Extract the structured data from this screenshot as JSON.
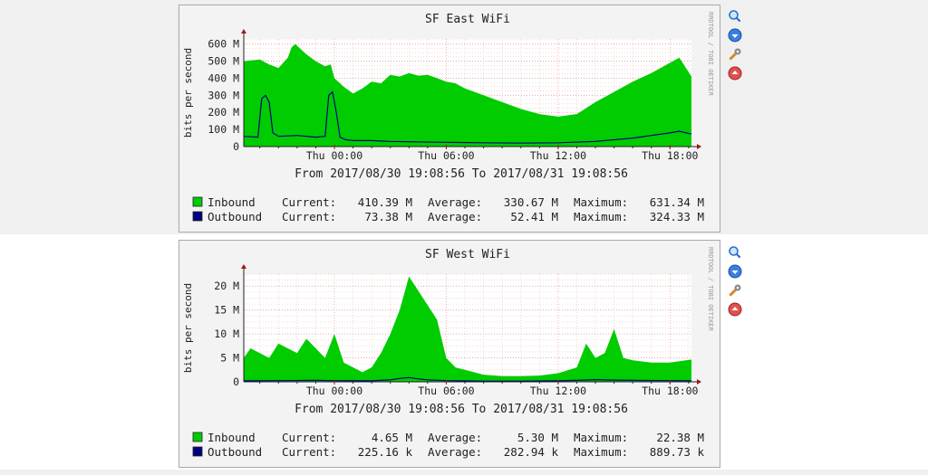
{
  "rrdtool_credit": "RRDTOOL / TOBI OETIKER",
  "toolbar_icons": [
    "zoom-icon",
    "move-down-icon",
    "edit-icon",
    "remove-icon"
  ],
  "graphs": [
    {
      "title": "SF East WiFi",
      "ylabel": "bits per second",
      "date_range": "From 2017/08/30 19:08:56 To 2017/08/31 19:08:56",
      "legend": [
        {
          "name": "Inbound",
          "color": "#00cc00",
          "current": "410.39 M",
          "average": "330.67 M",
          "maximum": "631.34 M"
        },
        {
          "name": "Outbound",
          "color": "#000080",
          "current": "73.38 M",
          "average": "52.41 M",
          "maximum": "324.33 M"
        }
      ],
      "labels": {
        "current": "Current:",
        "average": "Average:",
        "maximum": "Maximum:"
      }
    },
    {
      "title": "SF West WiFi",
      "ylabel": "bits per second",
      "date_range": "From 2017/08/30 19:08:56 To 2017/08/31 19:08:56",
      "legend": [
        {
          "name": "Inbound",
          "color": "#00cc00",
          "current": "4.65 M",
          "average": "5.30 M",
          "maximum": "22.38 M"
        },
        {
          "name": "Outbound",
          "color": "#000080",
          "current": "225.16 k",
          "average": "282.94 k",
          "maximum": "889.73 k"
        }
      ],
      "labels": {
        "current": "Current:",
        "average": "Average:",
        "maximum": "Maximum:"
      }
    }
  ],
  "chart_data": [
    {
      "type": "area",
      "title": "SF East WiFi",
      "ylabel": "bits per second",
      "x_unit": "hours",
      "x_range": [
        -4.86,
        19.15
      ],
      "x_ticks": [
        {
          "v": 0,
          "label": "Thu 00:00"
        },
        {
          "v": 6,
          "label": "Thu 06:00"
        },
        {
          "v": 12,
          "label": "Thu 12:00"
        },
        {
          "v": 18,
          "label": "Thu 18:00"
        }
      ],
      "ylim": [
        0,
        630
      ],
      "y_ticks": [
        {
          "v": 0,
          "label": "0"
        },
        {
          "v": 100,
          "label": "100 M"
        },
        {
          "v": 200,
          "label": "200 M"
        },
        {
          "v": 300,
          "label": "300 M"
        },
        {
          "v": 400,
          "label": "400 M"
        },
        {
          "v": 500,
          "label": "500 M"
        },
        {
          "v": 600,
          "label": "600 M"
        }
      ],
      "series": [
        {
          "name": "Inbound",
          "kind": "area",
          "color": "#00cc00",
          "x": [
            -4.86,
            -4,
            -3.5,
            -3,
            -2.5,
            -2.3,
            -2.1,
            -1.5,
            -1,
            -0.5,
            -0.2,
            0,
            0.5,
            1,
            1.5,
            2,
            2.5,
            3,
            3.5,
            4,
            4.5,
            5,
            5.5,
            6,
            6.5,
            7,
            8,
            9,
            10,
            11,
            12,
            13,
            14,
            15,
            16,
            17,
            18,
            18.5,
            19.15
          ],
          "y": [
            500,
            510,
            480,
            460,
            520,
            580,
            600,
            540,
            500,
            470,
            480,
            400,
            350,
            310,
            340,
            380,
            370,
            420,
            410,
            430,
            415,
            420,
            400,
            380,
            370,
            340,
            300,
            260,
            220,
            190,
            175,
            190,
            260,
            320,
            380,
            430,
            490,
            520,
            410
          ]
        },
        {
          "name": "Outbound",
          "kind": "line",
          "color": "#000080",
          "x": [
            -4.86,
            -4.1,
            -3.9,
            -3.7,
            -3.5,
            -3.3,
            -3,
            -2,
            -1,
            -0.5,
            -0.3,
            -0.1,
            0.1,
            0.3,
            0.6,
            1,
            2,
            3,
            4,
            6,
            8,
            10,
            12,
            14,
            16,
            17,
            18,
            18.5,
            19.15
          ],
          "y": [
            60,
            55,
            280,
            300,
            260,
            80,
            60,
            65,
            55,
            60,
            300,
            320,
            200,
            55,
            40,
            35,
            35,
            30,
            28,
            25,
            22,
            20,
            22,
            30,
            50,
            65,
            80,
            90,
            73
          ]
        }
      ]
    },
    {
      "type": "area",
      "title": "SF West WiFi",
      "ylabel": "bits per second",
      "x_unit": "hours",
      "x_range": [
        -4.86,
        19.15
      ],
      "x_ticks": [
        {
          "v": 0,
          "label": "Thu 00:00"
        },
        {
          "v": 6,
          "label": "Thu 06:00"
        },
        {
          "v": 12,
          "label": "Thu 12:00"
        },
        {
          "v": 18,
          "label": "Thu 18:00"
        }
      ],
      "ylim": [
        0,
        22.5
      ],
      "y_ticks": [
        {
          "v": 0,
          "label": "0"
        },
        {
          "v": 5,
          "label": "5 M"
        },
        {
          "v": 10,
          "label": "10 M"
        },
        {
          "v": 15,
          "label": "15 M"
        },
        {
          "v": 20,
          "label": "20 M"
        }
      ],
      "series": [
        {
          "name": "Inbound",
          "kind": "area",
          "color": "#00cc00",
          "x": [
            -4.86,
            -4.5,
            -4,
            -3.5,
            -3,
            -2.5,
            -2,
            -1.5,
            -1,
            -0.5,
            0,
            0.5,
            1,
            1.5,
            2,
            2.5,
            3,
            3.5,
            4,
            4.5,
            5,
            5.5,
            6,
            6.5,
            7,
            8,
            9,
            10,
            11,
            12,
            13,
            13.5,
            14,
            14.5,
            15,
            15.5,
            16,
            17,
            18,
            19.15
          ],
          "y": [
            5,
            7,
            6,
            5,
            8,
            7,
            6,
            9,
            7,
            5,
            10,
            4,
            3,
            2,
            3,
            6,
            10,
            15,
            22,
            19,
            16,
            13,
            5,
            3,
            2.5,
            1.5,
            1.2,
            1.2,
            1.3,
            1.8,
            3,
            8,
            5,
            6,
            11,
            5,
            4.5,
            4,
            4,
            4.65
          ]
        },
        {
          "name": "Outbound",
          "kind": "line",
          "color": "#000080",
          "x": [
            -4.86,
            -3,
            -1,
            0,
            2,
            3,
            3.5,
            4,
            4.5,
            5,
            6,
            8,
            10,
            12,
            13,
            14,
            15,
            16,
            18,
            19.15
          ],
          "y": [
            0.2,
            0.25,
            0.3,
            0.25,
            0.2,
            0.4,
            0.7,
            0.88,
            0.6,
            0.4,
            0.25,
            0.15,
            0.15,
            0.2,
            0.3,
            0.45,
            0.35,
            0.3,
            0.25,
            0.22
          ]
        }
      ]
    }
  ]
}
